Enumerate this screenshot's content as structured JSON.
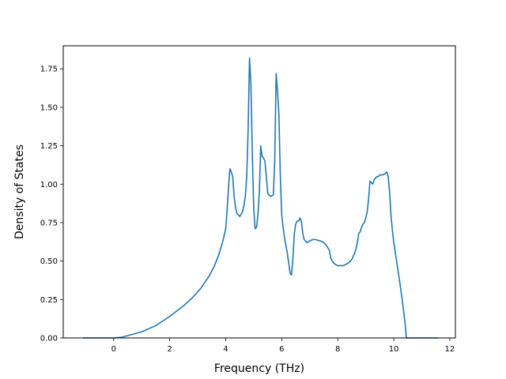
{
  "chart_data": {
    "type": "line",
    "title": "",
    "xlabel": "Frequency (THz)",
    "ylabel": "Density of States",
    "xlim": [
      -1.8,
      12.2
    ],
    "ylim": [
      0,
      1.9
    ],
    "xticks": [
      0,
      2,
      4,
      6,
      8,
      10,
      12
    ],
    "xtick_labels": [
      "0",
      "2",
      "4",
      "6",
      "8",
      "10",
      "12"
    ],
    "yticks": [
      0,
      0.25,
      0.5,
      0.75,
      1.0,
      1.25,
      1.5,
      1.75
    ],
    "ytick_labels": [
      "0.00",
      "0.25",
      "0.50",
      "0.75",
      "1.00",
      "1.25",
      "1.50",
      "1.75"
    ],
    "grid": false,
    "line_color": "#1f77b4",
    "series": [
      {
        "x": [
          -1.1,
          -0.5,
          0.0,
          0.3,
          0.6,
          1.0,
          1.5,
          2.0,
          2.5,
          2.8,
          3.1,
          3.4,
          3.6,
          3.75,
          3.9,
          4.0,
          4.05,
          4.1,
          4.15,
          4.2,
          4.25,
          4.3,
          4.35,
          4.4,
          4.5,
          4.6,
          4.65,
          4.7,
          4.75,
          4.8,
          4.85,
          4.9,
          4.95,
          5.0,
          5.05,
          5.1,
          5.15,
          5.2,
          5.25,
          5.3,
          5.35,
          5.4,
          5.45,
          5.5,
          5.6,
          5.7,
          5.75,
          5.8,
          5.85,
          5.9,
          5.95,
          6.0,
          6.05,
          6.1,
          6.2,
          6.3,
          6.35,
          6.4,
          6.45,
          6.5,
          6.55,
          6.6,
          6.65,
          6.7,
          6.75,
          6.8,
          6.9,
          7.0,
          7.1,
          7.2,
          7.3,
          7.4,
          7.5,
          7.6,
          7.7,
          7.75,
          7.8,
          7.85,
          7.9,
          8.0,
          8.1,
          8.2,
          8.3,
          8.4,
          8.5,
          8.6,
          8.65,
          8.7,
          8.75,
          8.8,
          8.85,
          8.9,
          8.95,
          9.0,
          9.05,
          9.1,
          9.15,
          9.2,
          9.25,
          9.3,
          9.35,
          9.4,
          9.45,
          9.5,
          9.6,
          9.7,
          9.75,
          9.8,
          9.85,
          9.9,
          9.95,
          10.0,
          10.1,
          10.2,
          10.3,
          10.4,
          10.45,
          10.5,
          10.55,
          10.6,
          11.0,
          11.6
        ],
        "y": [
          0.0,
          0.0,
          0.0,
          0.005,
          0.02,
          0.04,
          0.08,
          0.14,
          0.21,
          0.26,
          0.32,
          0.4,
          0.47,
          0.54,
          0.63,
          0.71,
          0.83,
          0.98,
          1.1,
          1.08,
          1.05,
          0.92,
          0.85,
          0.81,
          0.79,
          0.82,
          0.86,
          0.92,
          1.05,
          1.35,
          1.82,
          1.65,
          1.2,
          0.84,
          0.71,
          0.72,
          0.8,
          0.95,
          1.25,
          1.18,
          1.17,
          1.15,
          1.05,
          0.94,
          0.92,
          0.93,
          1.15,
          1.72,
          1.6,
          1.45,
          1.05,
          0.8,
          0.72,
          0.65,
          0.55,
          0.42,
          0.41,
          0.52,
          0.68,
          0.74,
          0.76,
          0.76,
          0.78,
          0.76,
          0.68,
          0.64,
          0.62,
          0.63,
          0.64,
          0.64,
          0.635,
          0.63,
          0.62,
          0.6,
          0.57,
          0.52,
          0.5,
          0.49,
          0.48,
          0.47,
          0.47,
          0.47,
          0.48,
          0.49,
          0.51,
          0.55,
          0.58,
          0.62,
          0.68,
          0.69,
          0.72,
          0.74,
          0.75,
          0.78,
          0.82,
          0.9,
          1.02,
          1.01,
          1.0,
          1.03,
          1.04,
          1.05,
          1.05,
          1.06,
          1.06,
          1.07,
          1.08,
          1.05,
          0.95,
          0.8,
          0.7,
          0.62,
          0.5,
          0.38,
          0.25,
          0.1,
          0.0,
          0.0,
          0.0,
          0.0,
          0.0,
          0.0
        ]
      }
    ]
  }
}
